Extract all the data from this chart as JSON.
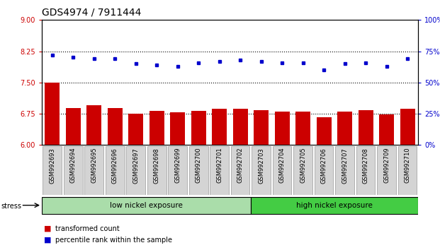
{
  "title": "GDS4974 / 7911444",
  "samples": [
    "GSM992693",
    "GSM992694",
    "GSM992695",
    "GSM992696",
    "GSM992697",
    "GSM992698",
    "GSM992699",
    "GSM992700",
    "GSM992701",
    "GSM992702",
    "GSM992703",
    "GSM992704",
    "GSM992705",
    "GSM992706",
    "GSM992707",
    "GSM992708",
    "GSM992709",
    "GSM992710"
  ],
  "bar_values": [
    7.5,
    6.88,
    6.95,
    6.88,
    6.75,
    6.82,
    6.79,
    6.82,
    6.87,
    6.87,
    6.83,
    6.8,
    6.8,
    6.66,
    6.8,
    6.83,
    6.73,
    6.87
  ],
  "dot_values": [
    72,
    70,
    69,
    69,
    65,
    64,
    63,
    66,
    67,
    68,
    67,
    66,
    66,
    60,
    65,
    66,
    63,
    69
  ],
  "bar_color": "#cc0000",
  "dot_color": "#0000cc",
  "ylim_left": [
    6,
    9
  ],
  "ylim_right": [
    0,
    100
  ],
  "yticks_left": [
    6,
    6.75,
    7.5,
    8.25,
    9
  ],
  "yticks_right": [
    0,
    25,
    50,
    75,
    100
  ],
  "hlines": [
    6.75,
    7.5,
    8.25
  ],
  "group1_label": "low nickel exposure",
  "group2_label": "high nickel exposure",
  "group1_count": 10,
  "group2_count": 8,
  "stress_label": "stress",
  "legend_bar": "transformed count",
  "legend_dot": "percentile rank within the sample",
  "group1_color": "#aaddaa",
  "group2_color": "#44cc44",
  "tick_label_color_left": "#cc0000",
  "tick_label_color_right": "#0000cc",
  "title_fontsize": 10,
  "bar_width": 0.7,
  "xtick_bg": "#d4d4d4",
  "xtick_edge": "#999999"
}
